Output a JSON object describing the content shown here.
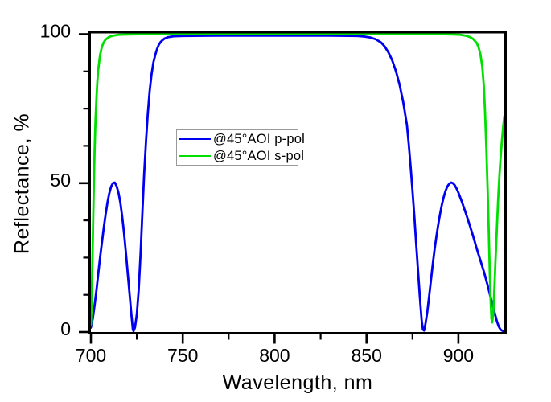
{
  "figure": {
    "background": "#ffffff",
    "axis_color": "#000000",
    "legend_border_color": "#9a9a9a"
  },
  "chart_data": {
    "type": "line",
    "title": "",
    "xlabel": "Wavelength, nm",
    "ylabel": "Reflectance, %",
    "xlim": [
      700,
      925
    ],
    "ylim": [
      0,
      100
    ],
    "x_major_ticks": [
      700,
      750,
      800,
      850,
      900
    ],
    "x_minor_ticks": [
      725,
      775,
      825,
      875
    ],
    "y_major_ticks": [
      0,
      50,
      100
    ],
    "y_minor_ticks": [
      12.5,
      25,
      37.5,
      62.5,
      75,
      87.5
    ],
    "grid": false,
    "legend_position": "upper-left-of-center",
    "series": [
      {
        "id": "p-pol",
        "name": "@45°AOI p-pol",
        "color": "#0000f0",
        "points": [
          [
            700,
            1.5
          ],
          [
            701,
            4.5
          ],
          [
            702,
            9
          ],
          [
            703,
            14
          ],
          [
            704,
            19.5
          ],
          [
            705,
            25
          ],
          [
            706,
            30
          ],
          [
            707,
            35
          ],
          [
            708,
            39.5
          ],
          [
            709,
            43.5
          ],
          [
            710,
            46.5
          ],
          [
            711,
            48.8
          ],
          [
            712,
            50
          ],
          [
            713,
            50.2
          ],
          [
            714,
            49
          ],
          [
            715,
            46.8
          ],
          [
            716,
            43.5
          ],
          [
            717,
            39
          ],
          [
            718,
            33.5
          ],
          [
            719,
            27
          ],
          [
            720,
            20
          ],
          [
            721,
            13
          ],
          [
            722,
            6
          ],
          [
            722.8,
            1
          ],
          [
            723.2,
            0.3
          ],
          [
            724,
            1.5
          ],
          [
            725,
            6
          ],
          [
            726,
            14
          ],
          [
            727,
            26
          ],
          [
            728,
            40
          ],
          [
            729,
            53
          ],
          [
            730,
            64
          ],
          [
            731,
            73.5
          ],
          [
            732,
            81
          ],
          [
            733,
            86.5
          ],
          [
            734,
            90.5
          ],
          [
            735,
            93
          ],
          [
            736,
            95
          ],
          [
            737,
            96.5
          ],
          [
            738,
            97.4
          ],
          [
            739,
            98
          ],
          [
            740,
            98.5
          ],
          [
            742,
            99
          ],
          [
            745,
            99.3
          ],
          [
            750,
            99.4
          ],
          [
            770,
            99.5
          ],
          [
            800,
            99.5
          ],
          [
            830,
            99.5
          ],
          [
            845,
            99.4
          ],
          [
            849,
            99.2
          ],
          [
            852,
            98.9
          ],
          [
            855,
            98.3
          ],
          [
            858,
            97.2
          ],
          [
            860,
            95.8
          ],
          [
            862,
            93.8
          ],
          [
            864,
            91.2
          ],
          [
            866,
            87.6
          ],
          [
            868,
            83
          ],
          [
            870,
            77
          ],
          [
            872,
            69.5
          ],
          [
            873,
            63
          ],
          [
            874,
            55.5
          ],
          [
            875,
            47.5
          ],
          [
            876,
            39
          ],
          [
            877,
            30
          ],
          [
            878,
            21
          ],
          [
            879,
            12
          ],
          [
            880,
            4
          ],
          [
            880.7,
            0.8
          ],
          [
            881.3,
            0.5
          ],
          [
            882,
            2.5
          ],
          [
            883,
            6.5
          ],
          [
            884,
            11.5
          ],
          [
            885,
            17
          ],
          [
            886,
            22.5
          ],
          [
            887,
            27.5
          ],
          [
            888,
            32
          ],
          [
            889,
            36
          ],
          [
            890,
            39.5
          ],
          [
            891,
            42.7
          ],
          [
            892,
            45.3
          ],
          [
            893,
            47.4
          ],
          [
            894,
            48.9
          ],
          [
            895,
            49.8
          ],
          [
            896,
            50.2
          ],
          [
            897,
            50
          ],
          [
            898,
            49.3
          ],
          [
            899,
            48.2
          ],
          [
            900,
            46.8
          ],
          [
            902,
            43.5
          ],
          [
            904,
            40
          ],
          [
            906,
            36.2
          ],
          [
            908,
            32.2
          ],
          [
            910,
            28
          ],
          [
            912,
            24
          ],
          [
            914,
            20
          ],
          [
            916,
            15.5
          ],
          [
            918,
            10.5
          ],
          [
            920,
            5.8
          ],
          [
            921,
            3.5
          ],
          [
            922,
            1.8
          ],
          [
            923,
            0.8
          ],
          [
            924,
            0.4
          ],
          [
            925,
            0.3
          ]
        ]
      },
      {
        "id": "s-pol",
        "name": "@45°AOI s-pol",
        "color": "#00e000",
        "points": [
          [
            700,
            2.5
          ],
          [
            700.4,
            10
          ],
          [
            700.8,
            22
          ],
          [
            701.2,
            36
          ],
          [
            701.6,
            50
          ],
          [
            702,
            61
          ],
          [
            702.5,
            71
          ],
          [
            703,
            78.5
          ],
          [
            703.5,
            84
          ],
          [
            704,
            88
          ],
          [
            705,
            93
          ],
          [
            706,
            95.8
          ],
          [
            707,
            97.3
          ],
          [
            708,
            98.2
          ],
          [
            710,
            99.1
          ],
          [
            712,
            99.5
          ],
          [
            715,
            99.8
          ],
          [
            720,
            99.9
          ],
          [
            730,
            100
          ],
          [
            760,
            100
          ],
          [
            800,
            100
          ],
          [
            840,
            100
          ],
          [
            870,
            100
          ],
          [
            890,
            100
          ],
          [
            897,
            99.9
          ],
          [
            901,
            99.8
          ],
          [
            904,
            99.5
          ],
          [
            906,
            99.1
          ],
          [
            908,
            98.4
          ],
          [
            910,
            97
          ],
          [
            911,
            95.6
          ],
          [
            912,
            93.2
          ],
          [
            913,
            89
          ],
          [
            913.8,
            83
          ],
          [
            914.5,
            74
          ],
          [
            915.2,
            62
          ],
          [
            915.9,
            48
          ],
          [
            916.5,
            34
          ],
          [
            917,
            22
          ],
          [
            917.5,
            11
          ],
          [
            918,
            4.5
          ],
          [
            918.4,
            3.2
          ],
          [
            918.9,
            6
          ],
          [
            919.5,
            13
          ],
          [
            920.2,
            24
          ],
          [
            921,
            36
          ],
          [
            921.8,
            47
          ],
          [
            922.7,
            56
          ],
          [
            923.5,
            63
          ],
          [
            924.3,
            68.5
          ],
          [
            925,
            72.5
          ]
        ]
      }
    ]
  }
}
